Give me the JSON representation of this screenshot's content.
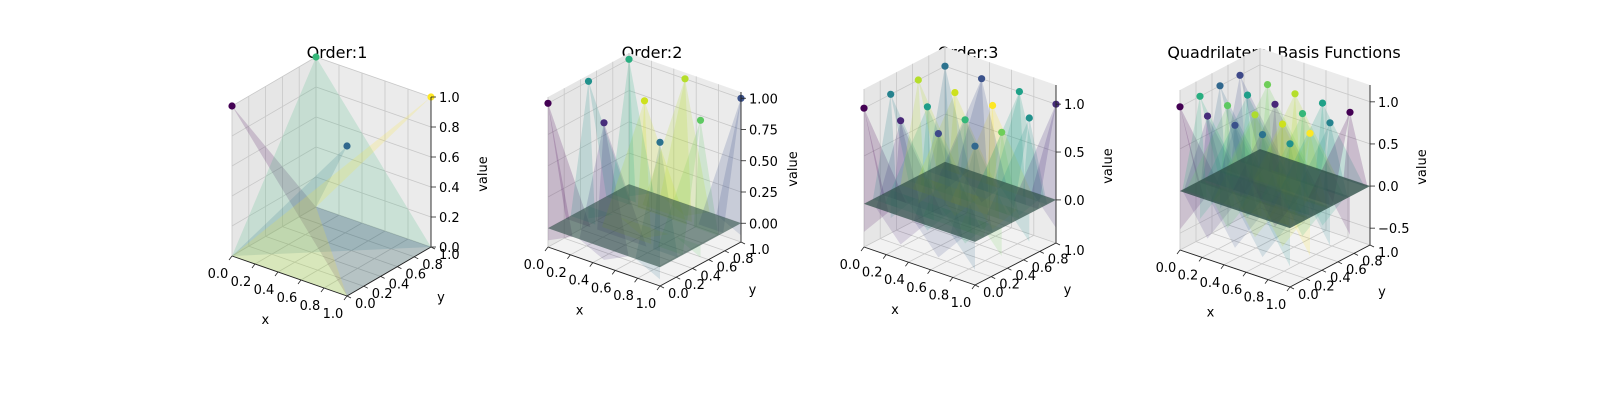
{
  "figure_title": "Quadrilateral Basis Functions",
  "chart_data": [
    {
      "type": "surface3d",
      "title": "Order:1",
      "xlabel": "x",
      "ylabel": "y",
      "zlabel": "value",
      "xlim": [
        0,
        1
      ],
      "ylim": [
        0,
        1
      ],
      "zlim": [
        0,
        1
      ],
      "x_ticks": [
        "0.0",
        "0.2",
        "0.4",
        "0.6",
        "0.8",
        "1.0"
      ],
      "y_ticks": [
        "0.0",
        "0.2",
        "0.4",
        "0.6",
        "0.8",
        "1.0"
      ],
      "z_ticks": [
        "0.0",
        "0.2",
        "0.4",
        "0.6",
        "0.8",
        "1.0"
      ],
      "nodes": [
        {
          "x": 0,
          "y": 0,
          "z": 1,
          "color": "#440154"
        },
        {
          "x": 1,
          "y": 0,
          "z": 1,
          "color": "#31688e"
        },
        {
          "x": 0,
          "y": 1,
          "z": 1,
          "color": "#35b779"
        },
        {
          "x": 1,
          "y": 1,
          "z": 1,
          "color": "#fde725"
        }
      ]
    },
    {
      "type": "surface3d",
      "title": "Order:2",
      "xlabel": "x",
      "ylabel": "y",
      "zlabel": "value",
      "xlim": [
        0,
        1
      ],
      "ylim": [
        0,
        1
      ],
      "zlim": [
        -0.15,
        1.05
      ],
      "x_ticks": [
        "0.0",
        "0.2",
        "0.4",
        "0.6",
        "0.8",
        "1.0"
      ],
      "y_ticks": [
        "0.0",
        "0.2",
        "0.4",
        "0.6",
        "0.8",
        "1.0"
      ],
      "z_ticks": [
        "0.00",
        "0.25",
        "0.50",
        "0.75",
        "1.00"
      ],
      "nodes": [
        {
          "x": 0,
          "y": 0,
          "z": 1,
          "color": "#440154"
        },
        {
          "x": 0.5,
          "y": 0,
          "z": 1,
          "color": "#472d7b"
        },
        {
          "x": 1,
          "y": 0,
          "z": 1,
          "color": "#2c728e"
        },
        {
          "x": 0,
          "y": 0.5,
          "z": 1,
          "color": "#21918c"
        },
        {
          "x": 0.5,
          "y": 0.5,
          "z": 1,
          "color": "#cde11d"
        },
        {
          "x": 1,
          "y": 0.5,
          "z": 1,
          "color": "#5ec962"
        },
        {
          "x": 0,
          "y": 1,
          "z": 1,
          "color": "#28ae80"
        },
        {
          "x": 0.5,
          "y": 1,
          "z": 1,
          "color": "#b5de2b"
        },
        {
          "x": 1,
          "y": 1,
          "z": 1,
          "color": "#3b528b"
        }
      ]
    },
    {
      "type": "surface3d",
      "title": "Order:3",
      "xlabel": "x",
      "ylabel": "y",
      "zlabel": "value",
      "xlim": [
        0,
        1
      ],
      "ylim": [
        0,
        1
      ],
      "zlim": [
        -0.45,
        1.2
      ],
      "x_ticks": [
        "0.0",
        "0.2",
        "0.4",
        "0.6",
        "0.8",
        "1.0"
      ],
      "y_ticks": [
        "0.0",
        "0.2",
        "0.4",
        "0.6",
        "0.8",
        "1.0"
      ],
      "z_ticks": [
        "0.0",
        "0.5",
        "1.0"
      ],
      "nodes": [
        {
          "x": 0,
          "y": 0,
          "z": 1,
          "color": "#440154"
        },
        {
          "x": 0.33,
          "y": 0,
          "z": 1,
          "color": "#482878"
        },
        {
          "x": 0.67,
          "y": 0,
          "z": 1,
          "color": "#3e4989"
        },
        {
          "x": 1,
          "y": 0,
          "z": 1,
          "color": "#31688e"
        },
        {
          "x": 0,
          "y": 0.33,
          "z": 1,
          "color": "#26828e"
        },
        {
          "x": 0.33,
          "y": 0.33,
          "z": 1,
          "color": "#1f9e89"
        },
        {
          "x": 0.67,
          "y": 0.33,
          "z": 1,
          "color": "#35b779"
        },
        {
          "x": 1,
          "y": 0.33,
          "z": 1,
          "color": "#6ece58"
        },
        {
          "x": 0,
          "y": 0.67,
          "z": 1,
          "color": "#b5de2b"
        },
        {
          "x": 0.33,
          "y": 0.67,
          "z": 1,
          "color": "#cde11d"
        },
        {
          "x": 0.67,
          "y": 0.67,
          "z": 1,
          "color": "#fde725"
        },
        {
          "x": 1,
          "y": 0.67,
          "z": 1,
          "color": "#21918c"
        },
        {
          "x": 0,
          "y": 1,
          "z": 1,
          "color": "#2c728e"
        },
        {
          "x": 0.33,
          "y": 1,
          "z": 1,
          "color": "#3b528b"
        },
        {
          "x": 0.67,
          "y": 1,
          "z": 1,
          "color": "#1fa188"
        },
        {
          "x": 1,
          "y": 1,
          "z": 1,
          "color": "#472d7b"
        }
      ]
    },
    {
      "type": "surface3d",
      "title": "Quadrilateral Basis Functions",
      "xlabel": "x",
      "ylabel": "y",
      "zlabel": "value",
      "xlim": [
        0,
        1
      ],
      "ylim": [
        0,
        1
      ],
      "zlim": [
        -0.7,
        1.2
      ],
      "x_ticks": [
        "0.0",
        "0.2",
        "0.4",
        "0.6",
        "0.8",
        "1.0"
      ],
      "y_ticks": [
        "0.0",
        "0.2",
        "0.4",
        "0.6",
        "0.8",
        "1.0"
      ],
      "z_ticks": [
        "−0.5",
        "0.0",
        "0.5",
        "1.0"
      ],
      "nodes": [
        {
          "x": 0,
          "y": 0,
          "z": 1,
          "color": "#440154"
        },
        {
          "x": 0.25,
          "y": 0,
          "z": 1,
          "color": "#472d7b"
        },
        {
          "x": 0.5,
          "y": 0,
          "z": 1,
          "color": "#3b528b"
        },
        {
          "x": 0.75,
          "y": 0,
          "z": 1,
          "color": "#2c728e"
        },
        {
          "x": 1,
          "y": 0,
          "z": 1,
          "color": "#21918c"
        },
        {
          "x": 0,
          "y": 0.25,
          "z": 1,
          "color": "#28ae80"
        },
        {
          "x": 0.25,
          "y": 0.25,
          "z": 1,
          "color": "#5ec962"
        },
        {
          "x": 0.5,
          "y": 0.25,
          "z": 1,
          "color": "#addc30"
        },
        {
          "x": 0.75,
          "y": 0.25,
          "z": 1,
          "color": "#cde11d"
        },
        {
          "x": 1,
          "y": 0.25,
          "z": 1,
          "color": "#fde725"
        },
        {
          "x": 0,
          "y": 0.5,
          "z": 1,
          "color": "#31688e"
        },
        {
          "x": 0.25,
          "y": 0.5,
          "z": 1,
          "color": "#1f9e89"
        },
        {
          "x": 0.5,
          "y": 0.5,
          "z": 1,
          "color": "#482878"
        },
        {
          "x": 0.75,
          "y": 0.5,
          "z": 1,
          "color": "#35b779"
        },
        {
          "x": 1,
          "y": 0.5,
          "z": 1,
          "color": "#26828e"
        },
        {
          "x": 0,
          "y": 0.75,
          "z": 1,
          "color": "#3e4989"
        },
        {
          "x": 0.25,
          "y": 0.75,
          "z": 1,
          "color": "#6ece58"
        },
        {
          "x": 0.5,
          "y": 0.75,
          "z": 1,
          "color": "#b5de2b"
        },
        {
          "x": 0.75,
          "y": 0.75,
          "z": 1,
          "color": "#1fa188"
        },
        {
          "x": 1,
          "y": 0.75,
          "z": 1,
          "color": "#440154"
        }
      ]
    }
  ]
}
